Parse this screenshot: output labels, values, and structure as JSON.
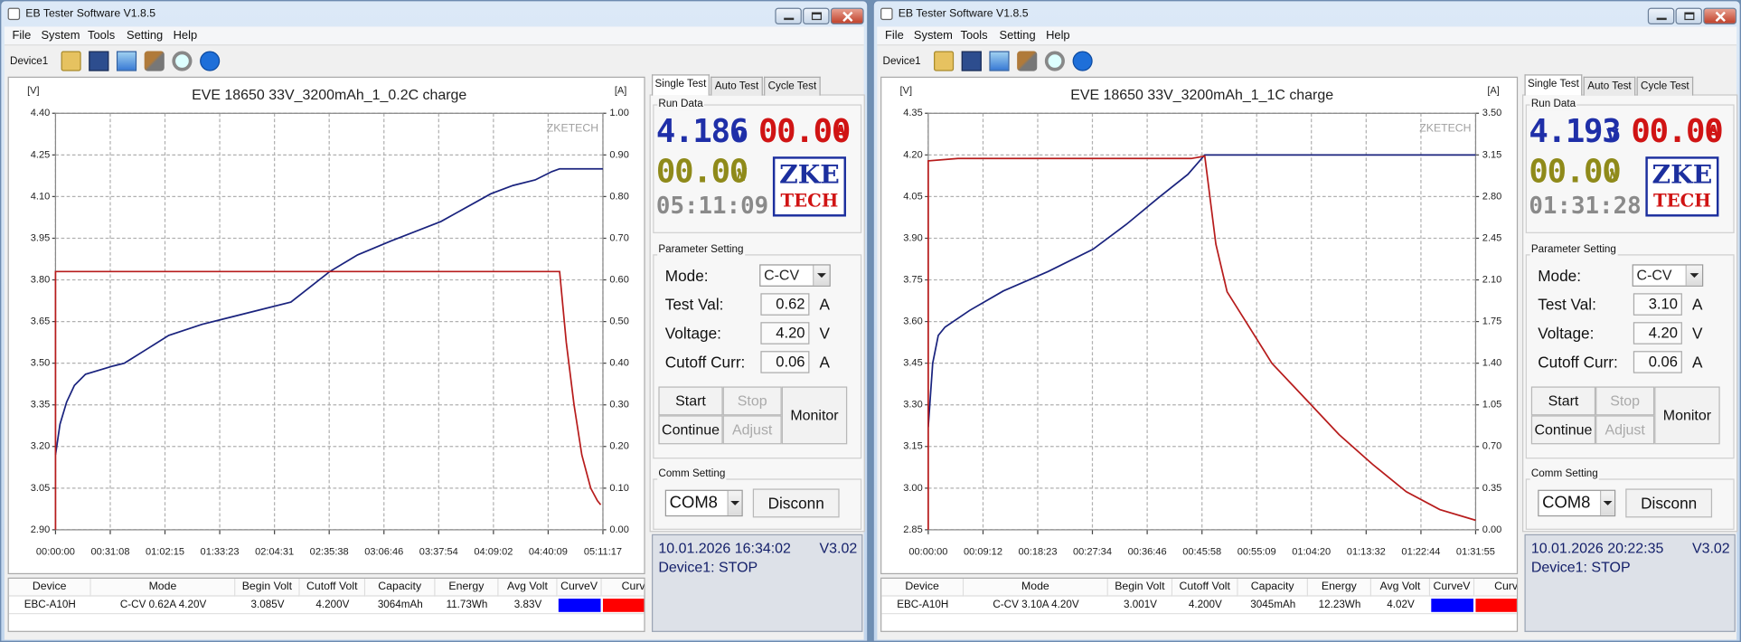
{
  "windows": [
    {
      "title": "EB Tester Software V1.8.5",
      "menu": [
        "File",
        "System",
        "Tools",
        "Setting",
        "Help"
      ],
      "device": "Device1",
      "tabs": [
        "Single Test",
        "Auto Test",
        "Cycle Test"
      ],
      "run_data": {
        "label": "Run Data",
        "voltage": "4.186",
        "voltage_unit": "v",
        "current": "00.00",
        "current_unit": "A",
        "power": "00.00",
        "power_unit": "w",
        "time": "05:11:09",
        "logo": [
          "ZKE",
          "TECH"
        ]
      },
      "parameter_setting": {
        "label": "Parameter Setting",
        "fields": [
          {
            "label": "Mode:",
            "value": "C-CV"
          },
          {
            "label": "Test Val:",
            "value": "0.62",
            "unit": "A"
          },
          {
            "label": "Voltage:",
            "value": "4.20",
            "unit": "V"
          },
          {
            "label": "Cutoff Curr:",
            "value": "0.06",
            "unit": "A"
          }
        ]
      },
      "buttons": [
        "Start",
        "Stop",
        "Continue",
        "Adjust",
        "Monitor"
      ],
      "comm_setting": {
        "label": "Comm Setting",
        "port": "COM8",
        "button": "Disconn"
      },
      "status": {
        "datetime": "10.01.2026 16:34:02",
        "version": "V3.02",
        "device_state": "Device1: STOP"
      },
      "table": {
        "headers": [
          "Device",
          "Mode",
          "Begin Volt",
          "Cutoff Volt",
          "Capacity",
          "Energy",
          "Avg Volt",
          "CurveV",
          "CurveA"
        ],
        "rows": [
          [
            "EBC-A10H",
            "C-CV 0.62A 4.20V",
            "3.085V",
            "4.200V",
            "3064mAh",
            "11.73Wh",
            "3.83V"
          ]
        ],
        "curve_colors": [
          "#0000ff",
          "#ff0000"
        ]
      }
    },
    {
      "title": "EB Tester Software V1.8.5",
      "menu": [
        "File",
        "System",
        "Tools",
        "Setting",
        "Help"
      ],
      "device": "Device1",
      "tabs": [
        "Single Test",
        "Auto Test",
        "Cycle Test"
      ],
      "run_data": {
        "label": "Run Data",
        "voltage": "4.193",
        "voltage_unit": "v",
        "current": "00.00",
        "current_unit": "A",
        "power": "00.00",
        "power_unit": "w",
        "time": "01:31:28",
        "logo": [
          "ZKE",
          "TECH"
        ]
      },
      "parameter_setting": {
        "label": "Parameter Setting",
        "fields": [
          {
            "label": "Mode:",
            "value": "C-CV"
          },
          {
            "label": "Test Val:",
            "value": "3.10",
            "unit": "A"
          },
          {
            "label": "Voltage:",
            "value": "4.20",
            "unit": "V"
          },
          {
            "label": "Cutoff Curr:",
            "value": "0.06",
            "unit": "A"
          }
        ]
      },
      "buttons": [
        "Start",
        "Stop",
        "Continue",
        "Adjust",
        "Monitor"
      ],
      "comm_setting": {
        "label": "Comm Setting",
        "port": "COM8",
        "button": "Disconn"
      },
      "status": {
        "datetime": "10.01.2026 20:22:35",
        "version": "V3.02",
        "device_state": "Device1: STOP"
      },
      "table": {
        "headers": [
          "Device",
          "Mode",
          "Begin Volt",
          "Cutoff Volt",
          "Capacity",
          "Energy",
          "Avg Volt",
          "CurveV",
          "CurveA"
        ],
        "rows": [
          [
            "EBC-A10H",
            "C-CV 3.10A 4.20V",
            "3.001V",
            "4.200V",
            "3045mAh",
            "12.23Wh",
            "4.02V"
          ]
        ],
        "curve_colors": [
          "#0000ff",
          "#ff0000"
        ]
      }
    }
  ],
  "chart_data": [
    {
      "type": "line",
      "title": "EVE 18650 33V_3200mAh_1_0.2C charge",
      "y_label": "[V]",
      "y2_label": "[A]",
      "watermark": "ZKETECH",
      "grid": true,
      "xlim": [
        0,
        18677
      ],
      "xticks": [
        {
          "value": 0,
          "label": "00:00:00"
        },
        {
          "value": 1868,
          "label": "00:31:08"
        },
        {
          "value": 3735,
          "label": "01:02:15"
        },
        {
          "value": 5603,
          "label": "01:33:23"
        },
        {
          "value": 7471,
          "label": "02:04:31"
        },
        {
          "value": 9338,
          "label": "02:35:38"
        },
        {
          "value": 11206,
          "label": "03:06:46"
        },
        {
          "value": 13074,
          "label": "03:37:54"
        },
        {
          "value": 14942,
          "label": "04:09:02"
        },
        {
          "value": 16809,
          "label": "04:40:09"
        },
        {
          "value": 18677,
          "label": "05:11:17"
        }
      ],
      "ylim": [
        2.9,
        4.4
      ],
      "yticks": [
        {
          "value": 2.9,
          "label": "2.90"
        },
        3.05,
        {
          "value": 3.2,
          "label": "3.20"
        },
        3.35,
        {
          "value": 3.5,
          "label": "3.50"
        },
        3.65,
        {
          "value": 3.8,
          "label": "3.80"
        },
        3.95,
        {
          "value": 4.1,
          "label": "4.10"
        },
        4.25,
        {
          "value": 4.4,
          "label": "4.40"
        }
      ],
      "y2lim": [
        0,
        1
      ],
      "y2ticks": [
        {
          "value": 0,
          "label": "0.00"
        },
        {
          "value": 0.1,
          "label": "0.10"
        },
        {
          "value": 0.2,
          "label": "0.20"
        },
        {
          "value": 0.3,
          "label": "0.30"
        },
        {
          "value": 0.4,
          "label": "0.40"
        },
        {
          "value": 0.5,
          "label": "0.50"
        },
        {
          "value": 0.6,
          "label": "0.60"
        },
        {
          "value": 0.7,
          "label": "0.70"
        },
        {
          "value": 0.8,
          "label": "0.80"
        },
        {
          "value": 0.9,
          "label": "0.90"
        },
        {
          "value": 1,
          "label": "1.00"
        }
      ],
      "series": [
        {
          "color": "#1a237e",
          "x": [
            0,
            152,
            379,
            644,
            1023,
            1970,
            2349,
            3107,
            3864,
            5001,
            6516,
            8032,
            9358,
            10305,
            11441,
            13146,
            14851,
            15609,
            16366,
            16935,
            17200,
            18677
          ],
          "values": [
            3.17,
            3.28,
            3.36,
            3.42,
            3.46,
            3.49,
            3.5,
            3.55,
            3.6,
            3.64,
            3.68,
            3.72,
            3.83,
            3.89,
            3.94,
            4.01,
            4.11,
            4.14,
            4.16,
            4.19,
            4.2,
            4.2
          ]
        },
        {
          "color": "#b71c1c",
          "axis": "y2",
          "x": [
            0,
            0,
            17200,
            17427,
            17692,
            17957,
            18260,
            18488,
            18601
          ],
          "values": [
            0,
            0.62,
            0.62,
            0.45,
            0.3,
            0.18,
            0.1,
            0.07,
            0.06
          ]
        }
      ]
    },
    {
      "type": "line",
      "title": "EVE 18650 33V_3200mAh_1_1C charge",
      "y_label": "[V]",
      "y2_label": "[A]",
      "watermark": "ZKETECH",
      "grid": true,
      "xlim": [
        0,
        5515
      ],
      "xticks": [
        {
          "value": 0,
          "label": "00:00:00"
        },
        {
          "value": 552,
          "label": "00:09:12"
        },
        {
          "value": 1103,
          "label": "00:18:23"
        },
        {
          "value": 1654,
          "label": "00:27:34"
        },
        {
          "value": 2206,
          "label": "00:36:46"
        },
        {
          "value": 2758,
          "label": "00:45:58"
        },
        {
          "value": 3309,
          "label": "00:55:09"
        },
        {
          "value": 3860,
          "label": "01:04:20"
        },
        {
          "value": 4412,
          "label": "01:13:32"
        },
        {
          "value": 4964,
          "label": "01:22:44"
        },
        {
          "value": 5515,
          "label": "01:31:55"
        }
      ],
      "ylim": [
        2.85,
        4.35
      ],
      "yticks": [
        2.85,
        {
          "value": 3,
          "label": "3.00"
        },
        3.15,
        {
          "value": 3.3,
          "label": "3.30"
        },
        3.45,
        {
          "value": 3.6,
          "label": "3.60"
        },
        3.75,
        {
          "value": 3.9,
          "label": "3.90"
        },
        4.05,
        {
          "value": 4.2,
          "label": "4.20"
        },
        4.35
      ],
      "y2lim": [
        0,
        3.5
      ],
      "y2ticks": [
        {
          "value": 0,
          "label": "0.00"
        },
        0.35,
        {
          "value": 0.7,
          "label": "0.70"
        },
        1.05,
        {
          "value": 1.4,
          "label": "1.40"
        },
        {
          "value": 1.75,
          "label": "1.75"
        },
        {
          "value": 2.1,
          "label": "2.10"
        },
        2.45,
        {
          "value": 2.8,
          "label": "2.80"
        },
        3.15,
        {
          "value": 3.5,
          "label": "3.50"
        }
      ],
      "series": [
        {
          "color": "#1a237e",
          "x": [
            0,
            45,
            101,
            169,
            417,
            756,
            1207,
            1658,
            1996,
            2334,
            2616,
            2786,
            5515
          ],
          "values": [
            3.22,
            3.45,
            3.55,
            3.58,
            3.64,
            3.71,
            3.78,
            3.86,
            3.95,
            4.05,
            4.13,
            4.2,
            4.2
          ]
        },
        {
          "color": "#b71c1c",
          "axis": "y2",
          "x": [
            0,
            0,
            300,
            2650,
            2786,
            2898,
            3011,
            3237,
            3462,
            3801,
            4139,
            4477,
            4816,
            5154,
            5515
          ],
          "values": [
            0,
            3.1,
            3.12,
            3.12,
            3.14,
            2.4,
            2.0,
            1.7,
            1.4,
            1.1,
            0.8,
            0.55,
            0.32,
            0.17,
            0.08
          ]
        }
      ]
    }
  ]
}
